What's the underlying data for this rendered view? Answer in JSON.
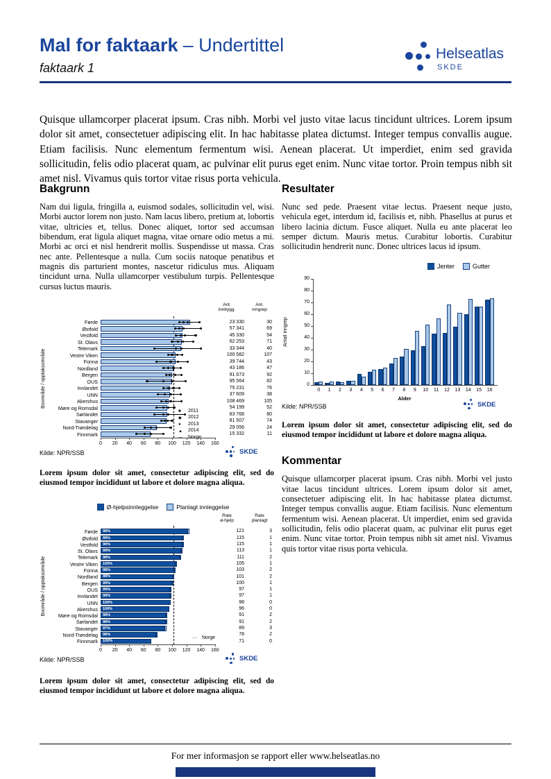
{
  "header": {
    "title": "Mal for faktaark",
    "subtitle": "– Undertittel",
    "tagline": "faktaark 1",
    "logo": {
      "brand": "Helseatlas",
      "org": "SKDE"
    }
  },
  "intro": "Quisque ullamcorper placerat ipsum. Cras nibh. Morbi vel justo vitae lacus tincidunt ultrices. Lorem ipsum dolor sit amet, consectetuer adipiscing elit. In hac habitasse platea dictumst. Integer tempus convallis augue. Etiam facilisis. Nunc elementum fermentum wisi. Aenean placerat. Ut imperdiet, enim sed gravida sollicitudin, felis odio placerat quam, ac pulvinar elit purus eget enim. Nunc vitae tortor. Proin tempus nibh sit amet nisl. Vivamus quis tortor vitae risus porta vehicula.",
  "sections": {
    "bakgrunn": {
      "heading": "Bakgrunn",
      "body": "Nam dui ligula, fringilla a, euismod sodales, sollicitudin vel, wisi. Morbi auctor lorem non justo. Nam lacus libero, pretium at, lobortis vitae, ultricies et, tellus. Donec aliquet, tortor sed accumsan bibendum, erat ligula aliquet magna, vitae ornare odio metus a mi. Morbi ac orci et nisl hendrerit mollis. Suspendisse ut massa. Cras nec ante. Pellentesque a nulla. Cum sociis natoque penatibus et magnis dis parturient montes, nascetur ridiculus mus. Aliquam tincidunt urna. Nulla ullamcorper vestibulum turpis. Pellentesque cursus luctus mauris."
    },
    "resultater": {
      "heading": "Resultater",
      "body": "Nunc sed pede. Praesent vitae lectus. Praesent neque justo, vehicula eget, interdum id, facilisis et, nibh. Phasellus at purus et libero lacinia dictum. Fusce aliquet. Nulla eu ante placerat leo semper dictum. Mauris metus. Curabitur lobortis. Curabitur sollicitudin hendrerit nunc. Donec ultrices lacus id ipsum."
    },
    "kommentar": {
      "heading": "Kommentar",
      "body": "Quisque ullamcorper placerat ipsum. Cras nibh. Morbi vel justo vitae lacus tincidunt ultrices. Lorem ipsum dolor sit amet, consectetuer adipiscing elit. In hac habitasse platea dictumst. Integer tempus convallis augue. Etiam facilisis. Nunc elementum fermentum wisi. Aenean placerat. Ut imperdiet, enim sed gravida sollicitudin, felis odio placerat quam, ac pulvinar elit purus eget enim. Nunc vitae tortor. Proin tempus nibh sit amet nisl. Vivamus quis tortor vitae risus porta vehicula."
    }
  },
  "captions": {
    "chart1": "Lorem ipsum dolor sit amet, consectetur adipiscing elit, sed do eiusmod tempor incididunt ut labore et dolore magna aliqua.",
    "chart2": "Lorem ipsum dolor sit amet, consectetur adipiscing elit, sed do eiusmod tempor incididunt ut labore et dolore magna aliqua.",
    "chart3": "Lorem ipsum dolor sit amet, consectetur adipiscing elit, sed do eiusmod tempor incididunt ut labore et dolore magna aliqua."
  },
  "footer": {
    "text": "For mer informasjon se rapport eller www.helseatlas.no"
  },
  "colors": {
    "accent": "#1a459c",
    "rule": "#16357e",
    "bar_light": "#aac8e8",
    "bar_dark": "#0f4f9e",
    "bar_border": "#15407f"
  },
  "chart_data": [
    {
      "type": "bar",
      "orientation": "horizontal",
      "ylabel": "Boområde / opptaksområde",
      "source": "Kilde: NPR/SSB",
      "xlim": [
        0,
        160
      ],
      "xticks": [
        0,
        20,
        40,
        60,
        80,
        100,
        120,
        140,
        160
      ],
      "norge_line": 102,
      "legend": [
        "2011",
        "2012",
        "2013",
        "2014",
        "Norge"
      ],
      "legend_glyphs": [
        "■",
        "◆",
        "●",
        "▲",
        "—"
      ],
      "col_headers": [
        "Ant.\ninnbygg.",
        "Ant.\ninngrep"
      ],
      "categories": [
        "Førde",
        "Østfold",
        "Vestfold",
        "St. Olavs",
        "Telemark",
        "Vestre Viken",
        "Fonna",
        "Nordland",
        "Bergen",
        "OUS",
        "Innlandet",
        "UNN",
        "Akershus",
        "Møre og Romsdal",
        "Sørlandet",
        "Stavanger",
        "Nord-Trøndelag",
        "Finnmark"
      ],
      "values": [
        125,
        115,
        115,
        114,
        113,
        105,
        105,
        102,
        100,
        100,
        97,
        97,
        95,
        93,
        93,
        92,
        79,
        70
      ],
      "markers": [
        [
          110,
          116,
          122,
          138
        ],
        [
          104,
          110,
          116,
          140
        ],
        [
          105,
          112,
          118,
          133
        ],
        [
          100,
          108,
          115,
          130
        ],
        [
          75,
          105,
          113,
          140
        ],
        [
          95,
          100,
          107,
          114
        ],
        [
          78,
          98,
          108,
          122
        ],
        [
          88,
          95,
          102,
          112
        ],
        [
          92,
          97,
          104,
          113
        ],
        [
          65,
          88,
          100,
          119
        ],
        [
          88,
          95,
          102,
          110
        ],
        [
          80,
          90,
          98,
          112
        ],
        [
          85,
          92,
          98,
          113
        ],
        [
          78,
          88,
          95,
          103
        ],
        [
          75,
          88,
          95,
          118
        ],
        [
          85,
          90,
          94,
          100
        ],
        [
          62,
          70,
          78,
          98
        ],
        [
          50,
          62,
          70,
          88
        ]
      ],
      "ant_innbygg": [
        "23 330",
        "57 341",
        "45 330",
        "62 253",
        "33 344",
        "100 582",
        "39 744",
        "43 186",
        "91 673",
        "95 564",
        "75 231",
        "37 609",
        "108 469",
        "54 199",
        "83 768",
        "81 507",
        "29 056",
        "15 332"
      ],
      "ant_inngrep": [
        "30",
        "69",
        "54",
        "71",
        "40",
        "107",
        "43",
        "47",
        "92",
        "82",
        "76",
        "38",
        "105",
        "52",
        "80",
        "74",
        "24",
        "11"
      ]
    },
    {
      "type": "bar",
      "orientation": "vertical",
      "xlabel": "Alder",
      "ylabel": "Antall inngrep",
      "ylim": [
        0,
        90
      ],
      "yticks": [
        0,
        10,
        20,
        30,
        40,
        50,
        60,
        70,
        80,
        90
      ],
      "categories": [
        "0",
        "1",
        "2",
        "3",
        "4",
        "5",
        "6",
        "7",
        "8",
        "9",
        "10",
        "11",
        "12",
        "13",
        "14",
        "15",
        "16"
      ],
      "series": [
        {
          "name": "Jenter",
          "values": [
            2,
            1.5,
            2.5,
            3.5,
            9,
            11,
            13.5,
            18,
            24,
            29,
            33,
            43.5,
            44,
            49,
            60,
            66,
            72
          ]
        },
        {
          "name": "Gutter",
          "values": [
            3,
            2.5,
            2,
            3.5,
            7,
            13,
            14.5,
            23,
            30.5,
            45.5,
            51,
            56,
            68,
            61,
            73,
            66.5,
            73.5
          ]
        }
      ],
      "legend_position": "top-right",
      "source": "Kilde: NPR/SSB"
    },
    {
      "type": "bar",
      "orientation": "horizontal",
      "stacked": true,
      "legend": [
        "Ø-hjelpsinnleggelse",
        "Planlagt innleggelse"
      ],
      "ylabel": "Boområde / opptaksområde",
      "source": "Kilde: NPR/SSB",
      "xlim": [
        0,
        160
      ],
      "xticks": [
        0,
        20,
        40,
        60,
        80,
        100,
        120,
        140,
        160
      ],
      "norge_line": 102,
      "norge_label": "Norge",
      "col_headers": [
        "Rate\nø-hjelp",
        "Rate\nplanlagt"
      ],
      "categories": [
        "Førde",
        "Østfold",
        "Vestfold",
        "St. Olavs",
        "Telemark",
        "Vestre Viken",
        "Fonna",
        "Nordland",
        "Bergen",
        "OUS",
        "Innlandet",
        "UNN",
        "Akershus",
        "Møre og Romsdal",
        "Sørlandet",
        "Stavanger",
        "Nord-Trøndelag",
        "Finnmark"
      ],
      "rate_ohjelp": [
        121,
        115,
        115,
        113,
        111,
        105,
        103,
        101,
        100,
        97,
        97,
        98,
        96,
        91,
        91,
        89,
        78,
        71
      ],
      "rate_planlagt": [
        3,
        1,
        1,
        1,
        2,
        1,
        2,
        2,
        1,
        1,
        1,
        0,
        0,
        2,
        2,
        3,
        2,
        0
      ],
      "bar_labels": [
        "98%",
        "99%",
        "99%",
        "99%",
        "98%",
        "100%",
        "98%",
        "98%",
        "99%",
        "99%",
        "99%",
        "100%",
        "100%",
        "98%",
        "98%",
        "97%",
        "98%",
        "100%"
      ]
    }
  ]
}
